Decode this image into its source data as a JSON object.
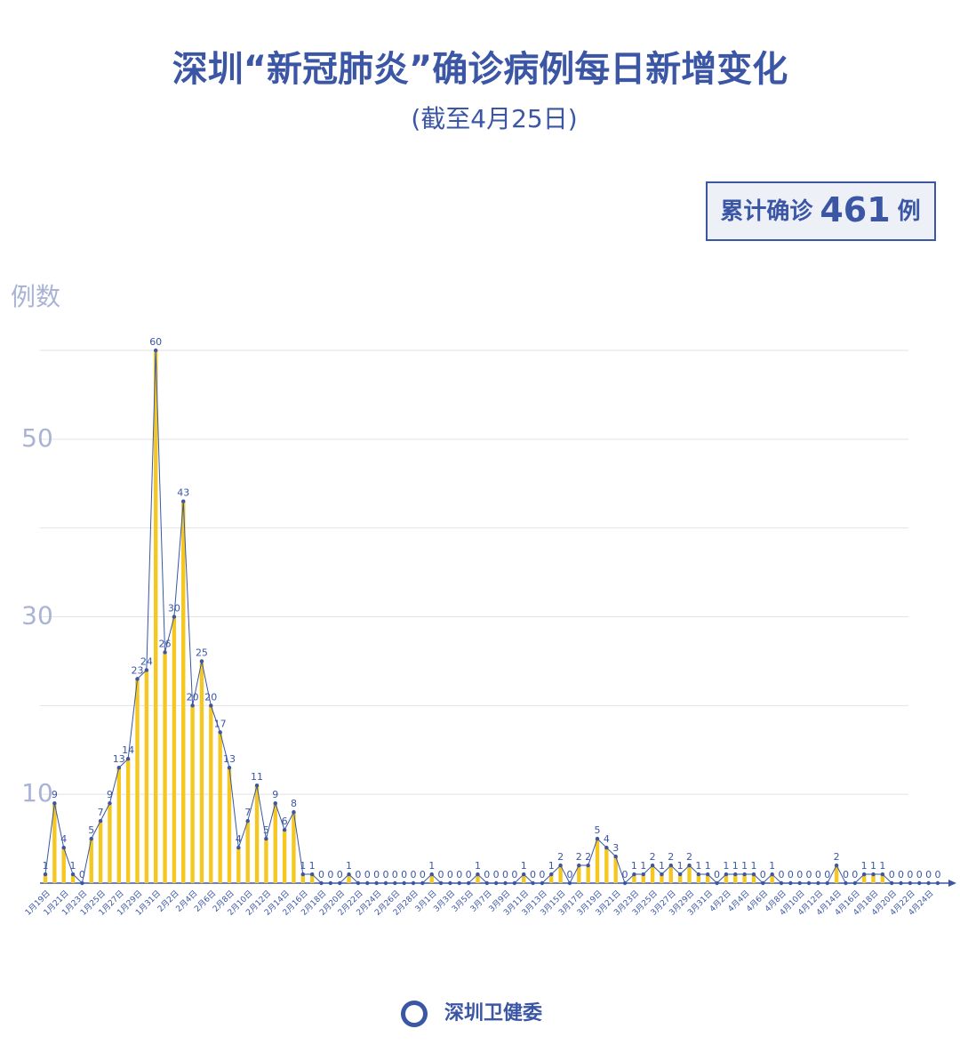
{
  "chart_data": {
    "type": "bar",
    "title": "深圳“新冠肺炎”确诊病例每日新增变化",
    "subtitle": "(截至4月25日)",
    "y_label": "例数",
    "total": {
      "prefix": "累计确诊",
      "value": 461,
      "suffix": "例"
    },
    "source": "深圳卫健委",
    "categories": [
      "1月19日",
      null,
      "1月21日",
      null,
      "1月23日",
      null,
      "1月25日",
      null,
      "1月27日",
      null,
      "1月29日",
      null,
      "1月31日",
      null,
      "2月2日",
      null,
      "2月4日",
      null,
      "2月6日",
      null,
      "2月8日",
      null,
      "2月10日",
      null,
      "2月12日",
      null,
      "2月14日",
      null,
      "2月16日",
      null,
      "2月18日",
      null,
      "2月20日",
      null,
      "2月22日",
      null,
      "2月24日",
      null,
      "2月26日",
      null,
      "2月28日",
      null,
      "3月1日",
      null,
      "3月3日",
      null,
      "3月5日",
      null,
      "3月7日",
      null,
      "3月9日",
      null,
      "3月11日",
      null,
      "3月13日",
      null,
      "3月15日",
      null,
      "3月17日",
      null,
      "3月19日",
      null,
      "3月21日",
      null,
      "3月23日",
      null,
      "3月25日",
      null,
      "3月27日",
      null,
      "3月29日",
      null,
      "3月31日",
      null,
      "4月2日",
      null,
      "4月4日",
      null,
      "4月6日",
      null,
      "4月8日",
      null,
      "4月10日",
      null,
      "4月12日",
      null,
      "4月14日",
      null,
      "4月16日",
      null,
      "4月18日",
      null,
      "4月20日",
      null,
      "4月22日",
      null,
      "4月24日",
      null
    ],
    "values": [
      1,
      9,
      4,
      1,
      0,
      5,
      7,
      9,
      13,
      14,
      23,
      24,
      60,
      26,
      30,
      43,
      20,
      25,
      20,
      17,
      13,
      4,
      7,
      11,
      5,
      9,
      6,
      8,
      1,
      1,
      0,
      0,
      0,
      1,
      0,
      0,
      0,
      0,
      0,
      0,
      0,
      0,
      1,
      0,
      0,
      0,
      0,
      1,
      0,
      0,
      0,
      0,
      1,
      0,
      0,
      1,
      2,
      0,
      2,
      2,
      5,
      4,
      3,
      0,
      1,
      1,
      2,
      1,
      2,
      1,
      2,
      1,
      1,
      0,
      1,
      1,
      1,
      1,
      0,
      1,
      0,
      0,
      0,
      0,
      0,
      0,
      2,
      0,
      0,
      1,
      1,
      1,
      0,
      0,
      0,
      0,
      0,
      0
    ],
    "bar_color": "#f5c821",
    "line_color": "#3a56a5",
    "ylim": [
      0,
      60
    ],
    "yticks": [
      10,
      30,
      50
    ],
    "minor_yticks": [
      20,
      40,
      60
    ],
    "grid": true
  }
}
